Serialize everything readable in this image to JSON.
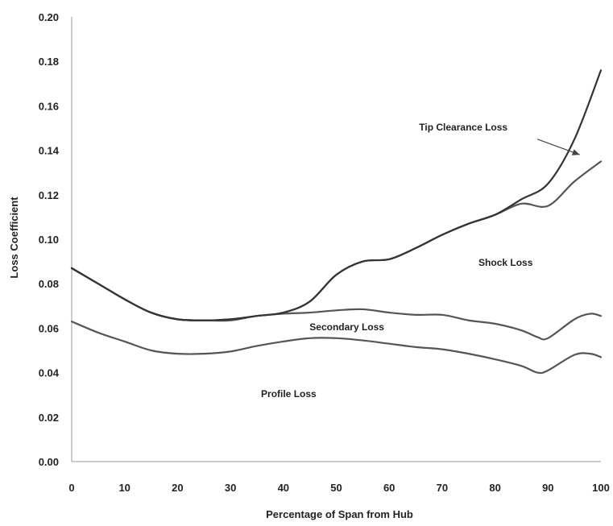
{
  "chart_data": {
    "type": "line",
    "title": "",
    "xlabel": "Percentage of Span from Hub",
    "ylabel": "Loss Coefficient",
    "xlim": [
      0,
      100
    ],
    "ylim": [
      0,
      0.2
    ],
    "x_ticks": [
      "0",
      "10",
      "20",
      "30",
      "40",
      "50",
      "60",
      "70",
      "80",
      "90",
      "100"
    ],
    "y_ticks": [
      "0.00",
      "0.02",
      "0.04",
      "0.06",
      "0.08",
      "0.10",
      "0.12",
      "0.14",
      "0.16",
      "0.18",
      "0.20"
    ],
    "grid": false,
    "legend": "none",
    "series": [
      {
        "x": [
          0,
          5,
          10,
          15,
          20,
          25,
          30,
          35,
          40,
          45,
          50,
          55,
          60,
          65,
          70,
          75,
          80,
          85,
          88,
          90,
          95,
          98,
          100
        ],
        "values": [
          0.063,
          0.058,
          0.054,
          0.05,
          0.0485,
          0.0485,
          0.0495,
          0.052,
          0.054,
          0.0555,
          0.0555,
          0.0545,
          0.053,
          0.0515,
          0.0505,
          0.0485,
          0.046,
          0.043,
          0.04,
          0.041,
          0.048,
          0.0485,
          0.047
        ],
        "color": "#555555"
      },
      {
        "x": [
          0,
          5,
          10,
          15,
          20,
          25,
          30,
          35,
          40,
          45,
          50,
          55,
          60,
          65,
          70,
          75,
          80,
          85,
          88,
          90,
          95,
          98,
          100
        ],
        "values": [
          0.087,
          0.08,
          0.073,
          0.067,
          0.064,
          0.0635,
          0.0635,
          0.0655,
          0.0665,
          0.067,
          0.068,
          0.0685,
          0.067,
          0.066,
          0.066,
          0.0635,
          0.062,
          0.059,
          0.056,
          0.0555,
          0.064,
          0.0665,
          0.0655
        ],
        "color": "#555555"
      },
      {
        "x": [
          0,
          5,
          10,
          15,
          20,
          25,
          30,
          35,
          40,
          45,
          50,
          55,
          60,
          65,
          70,
          75,
          80,
          85,
          90,
          95,
          100
        ],
        "values": [
          0.087,
          0.08,
          0.073,
          0.067,
          0.064,
          0.0635,
          0.064,
          0.0655,
          0.067,
          0.072,
          0.084,
          0.09,
          0.091,
          0.096,
          0.102,
          0.107,
          0.111,
          0.116,
          0.115,
          0.126,
          0.135
        ],
        "color": "#555555"
      },
      {
        "x": [
          0,
          5,
          10,
          15,
          20,
          25,
          30,
          35,
          40,
          45,
          50,
          55,
          60,
          65,
          70,
          75,
          80,
          85,
          90,
          95,
          100
        ],
        "values": [
          0.087,
          0.08,
          0.073,
          0.067,
          0.064,
          0.0635,
          0.064,
          0.0655,
          0.067,
          0.072,
          0.084,
          0.09,
          0.091,
          0.096,
          0.102,
          0.107,
          0.111,
          0.118,
          0.125,
          0.145,
          0.176
        ],
        "color": "#333333"
      }
    ],
    "annotations": [
      {
        "text": "Tip Clearance Loss",
        "x": 74,
        "y": 0.149
      },
      {
        "text": "Shock Loss",
        "x": 82,
        "y": 0.088
      },
      {
        "text": "Secondary Loss",
        "x": 52,
        "y": 0.059
      },
      {
        "text": "Profile Loss",
        "x": 41,
        "y": 0.029
      }
    ],
    "arrow": {
      "from": [
        88,
        0.145
      ],
      "to": [
        96,
        0.138
      ]
    }
  }
}
